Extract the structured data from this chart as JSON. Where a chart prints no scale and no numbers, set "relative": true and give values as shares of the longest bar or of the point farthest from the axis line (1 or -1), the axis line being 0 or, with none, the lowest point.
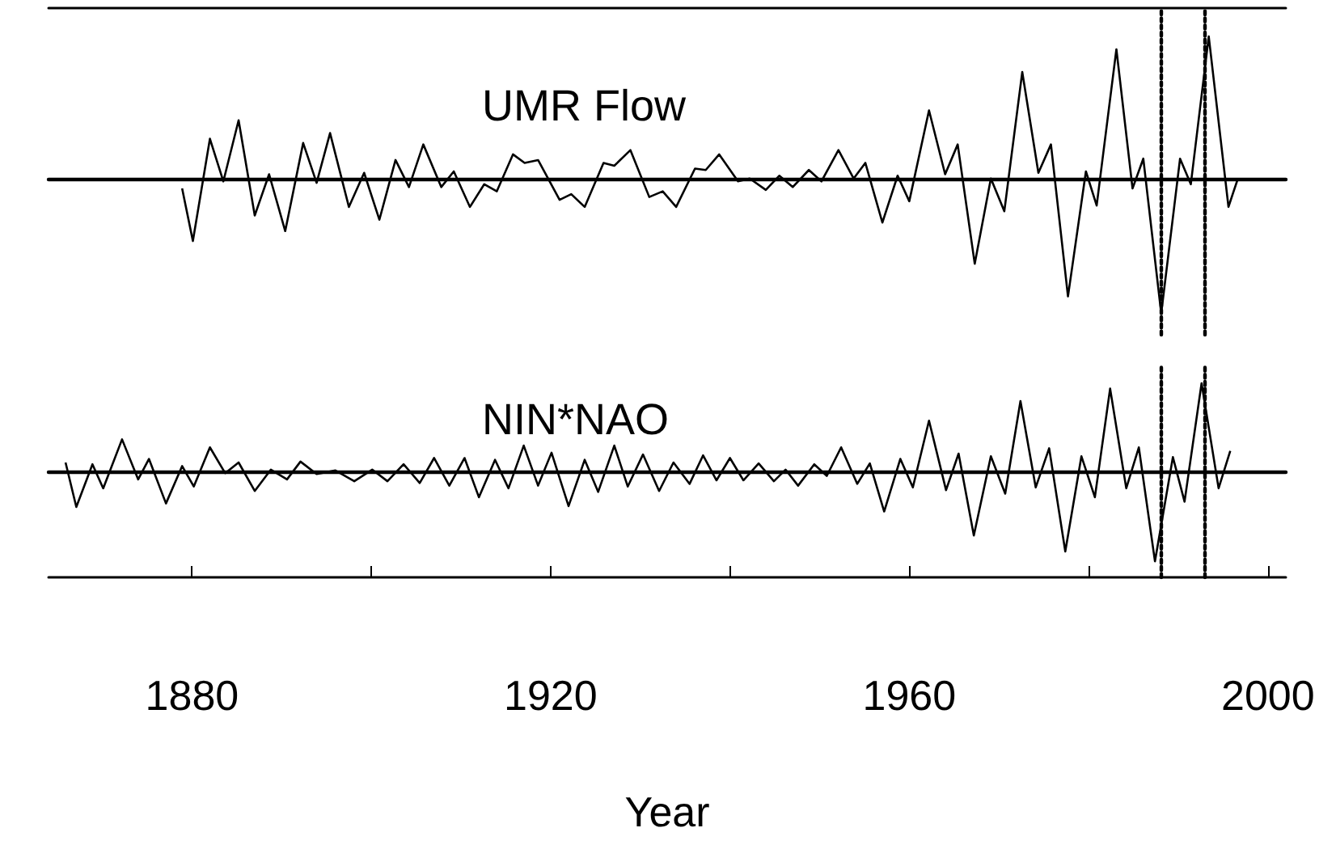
{
  "chart_data": [
    {
      "type": "line",
      "relative": true,
      "xlim": [
        1864,
        2002
      ],
      "tick_labels": false,
      "marker": "none",
      "grid": false,
      "ref_lines": [
        {
          "axis": "x",
          "value": 1988,
          "line_style": "dotted"
        },
        {
          "axis": "x",
          "value": 1993,
          "line_style": "dotted"
        }
      ],
      "series": [
        {
          "name": "UMR Flow",
          "color": "#000000",
          "x": [
            1878.9,
            1880.1,
            1882,
            1883.5,
            1885.2,
            1887,
            1888.6,
            1890.4,
            1892.4,
            1893.9,
            1895.4,
            1897.5,
            1899.2,
            1900.9,
            1902.7,
            1904.2,
            1905.8,
            1907.8,
            1909.2,
            1911,
            1912.6,
            1914,
            1915.8,
            1917.1,
            1918.6,
            1921,
            1922.3,
            1923.8,
            1925.9,
            1927.1,
            1928.9,
            1931,
            1932.5,
            1934,
            1936.1,
            1937.3,
            1938.8,
            1940.9,
            1942.2,
            1944,
            1945.5,
            1947,
            1948.8,
            1950.2,
            1952.1,
            1953.8,
            1955.1,
            1957,
            1958.7,
            1960,
            1962.2,
            1964,
            1965.4,
            1967.3,
            1969.1,
            1970.6,
            1972.6,
            1974.4,
            1975.8,
            1977.7,
            1979.7,
            1980.9,
            1983.1,
            1984.9,
            1986.1,
            1988.1,
            1990.2,
            1991.4,
            1993.4,
            1995.6,
            1996.6
          ],
          "values": [
            -0.07,
            -0.44,
            0.28,
            -0.02,
            0.41,
            -0.26,
            0.03,
            -0.37,
            0.25,
            -0.03,
            0.32,
            -0.2,
            0.04,
            -0.29,
            0.13,
            -0.06,
            0.24,
            -0.06,
            0.05,
            -0.2,
            -0.04,
            -0.09,
            0.17,
            0.11,
            0.13,
            -0.15,
            -0.11,
            -0.2,
            0.11,
            0.09,
            0.2,
            -0.13,
            -0.09,
            -0.2,
            0.07,
            0.06,
            0.17,
            -0.02,
            0,
            -0.08,
            0.02,
            -0.06,
            0.06,
            -0.02,
            0.2,
            0,
            0.11,
            -0.31,
            0.02,
            -0.16,
            0.48,
            0.03,
            0.24,
            -0.6,
            0,
            -0.23,
            0.75,
            0.04,
            0.24,
            -0.83,
            0.05,
            -0.19,
            0.91,
            -0.07,
            0.14,
            -0.95,
            0.14,
            -0.04,
            1,
            -0.2,
            -0.01
          ]
        }
      ]
    },
    {
      "type": "line",
      "relative": true,
      "xlim": [
        1864,
        2002
      ],
      "xticks": [
        1880,
        {
          "value": 1900,
          "label": null
        },
        1920,
        {
          "value": 1940,
          "label": null
        },
        1960,
        {
          "value": 1980,
          "label": null
        },
        2000
      ],
      "xlabel": "Year",
      "tick_labels": "x",
      "marker": "none",
      "grid": false,
      "ref_lines": [
        {
          "axis": "x",
          "value": 1988,
          "line_style": "dotted"
        },
        {
          "axis": "x",
          "value": 1993,
          "line_style": "dotted"
        }
      ],
      "series": [
        {
          "name": "NIN*NAO",
          "color": "#000000",
          "x": [
            1865.9,
            1867.1,
            1868.9,
            1870.1,
            1872.2,
            1874,
            1875.2,
            1877.1,
            1878.9,
            1880.2,
            1882,
            1883.7,
            1885.2,
            1887,
            1888.8,
            1890.6,
            1892.1,
            1893.9,
            1896,
            1898.1,
            1900.1,
            1901.8,
            1903.6,
            1905.4,
            1907,
            1908.7,
            1910.4,
            1912,
            1913.8,
            1915.3,
            1917,
            1918.6,
            1920.1,
            1922,
            1923.8,
            1925.3,
            1927.1,
            1928.6,
            1930.3,
            1932.1,
            1933.7,
            1935.5,
            1937,
            1938.5,
            1940,
            1941.5,
            1943.2,
            1944.9,
            1946.2,
            1947.6,
            1949.4,
            1950.8,
            1952.4,
            1954.2,
            1955.6,
            1957.2,
            1959,
            1960.4,
            1962.2,
            1964.1,
            1965.5,
            1967.2,
            1969.1,
            1970.7,
            1972.4,
            1974.1,
            1975.6,
            1977.4,
            1979.2,
            1980.7,
            1982.4,
            1984.2,
            1985.6,
            1987.4,
            1989.4,
            1990.7,
            1992.6,
            1994.5,
            1995.8
          ],
          "values": [
            0.11,
            -0.39,
            0.09,
            -0.18,
            0.37,
            -0.08,
            0.15,
            -0.35,
            0.07,
            -0.16,
            0.28,
            -0.01,
            0.11,
            -0.21,
            0.03,
            -0.08,
            0.12,
            -0.02,
            0.02,
            -0.1,
            0.03,
            -0.1,
            0.09,
            -0.12,
            0.16,
            -0.15,
            0.16,
            -0.28,
            0.14,
            -0.18,
            0.3,
            -0.15,
            0.22,
            -0.38,
            0.14,
            -0.22,
            0.3,
            -0.16,
            0.2,
            -0.21,
            0.11,
            -0.13,
            0.19,
            -0.09,
            0.16,
            -0.09,
            0.1,
            -0.1,
            0.03,
            -0.15,
            0.09,
            -0.04,
            0.28,
            -0.13,
            0.1,
            -0.44,
            0.15,
            -0.17,
            0.58,
            -0.2,
            0.21,
            -0.71,
            0.18,
            -0.24,
            0.8,
            -0.17,
            0.27,
            -0.89,
            0.18,
            -0.28,
            0.94,
            -0.18,
            0.28,
            -1,
            0.17,
            -0.33,
            1,
            -0.18,
            0.24
          ]
        }
      ]
    }
  ]
}
